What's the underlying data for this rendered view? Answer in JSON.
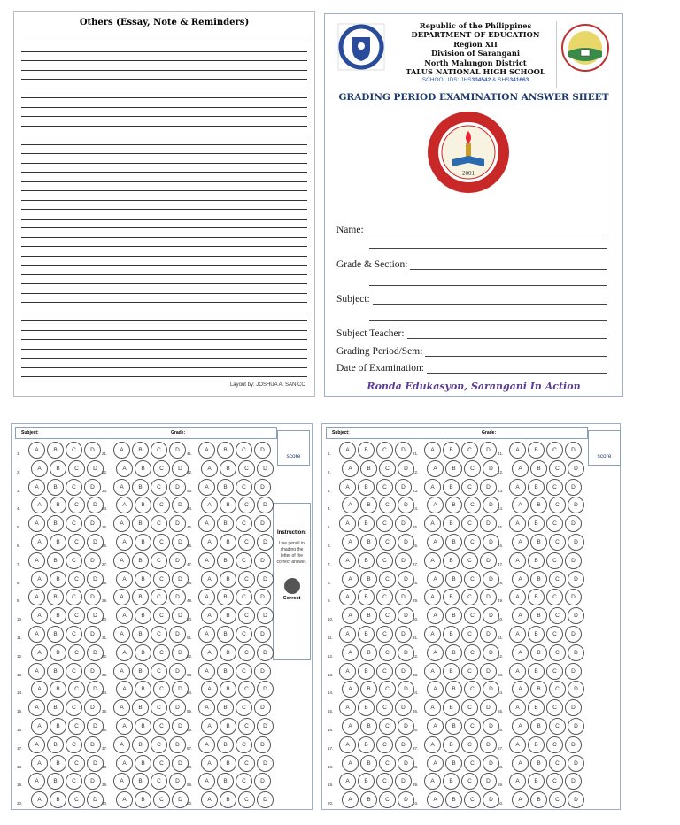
{
  "notes": {
    "title": "Others (Essay, Note & Reminders)",
    "credit": "Layout by: JOSHUA A. SANICO"
  },
  "cover": {
    "header": [
      "Republic of the Philippines",
      "DEPARTMENT OF EDUCATION",
      "Region XII",
      "Division of Sarangani",
      "North Malungon District",
      "TALUS NATIONAL HIGH SCHOOL"
    ],
    "ids_prefix": "SCHOOL IDS: JHS",
    "jhs_id": "304542",
    "ids_mid": " & SHS",
    "shs_id": "341663",
    "title": "GRADING PERIOD EXAMINATION ANSWER SHEET",
    "seal_year": "2001",
    "fields": {
      "name": "Name:",
      "grade_section": "Grade & Section:",
      "subject": "Subject:",
      "teacher": "Subject Teacher:",
      "period": "Grading Period/Sem:",
      "date": "Date of Examination:"
    },
    "motto": "Ronda Edukasyon, Sarangani In Action"
  },
  "answer_sheet": {
    "subject_label": "Subject:",
    "grade_label": "Grade:",
    "score_label": "score",
    "instruction_title": "Instruction:",
    "instruction_text": "Use pencil in shading the letter of the correct answer.",
    "correct_label": "Correct",
    "options": [
      "A",
      "B",
      "C",
      "D"
    ],
    "questions": [
      "1.",
      "2.",
      "3.",
      "4.",
      "5.",
      "6.",
      "7.",
      "8.",
      "9.",
      "10.",
      "11.",
      "12.",
      "13.",
      "14.",
      "15.",
      "16.",
      "17.",
      "18.",
      "19.",
      "20.",
      "21.",
      "22.",
      "23.",
      "24.",
      "25.",
      "26.",
      "27.",
      "28.",
      "29.",
      "30.",
      "31.",
      "32.",
      "33.",
      "34.",
      "35.",
      "36.",
      "37.",
      "38.",
      "39.",
      "40.",
      "41.",
      "42.",
      "43.",
      "44.",
      "45.",
      "46.",
      "47.",
      "48.",
      "49.",
      "50.",
      "51.",
      "52.",
      "53.",
      "54.",
      "55.",
      "56.",
      "57.",
      "58.",
      "59.",
      "60."
    ]
  },
  "colors": {
    "border": "#9bb0c8",
    "title": "#1d3a6e",
    "motto": "#5b3e94",
    "shade": "#555555"
  }
}
